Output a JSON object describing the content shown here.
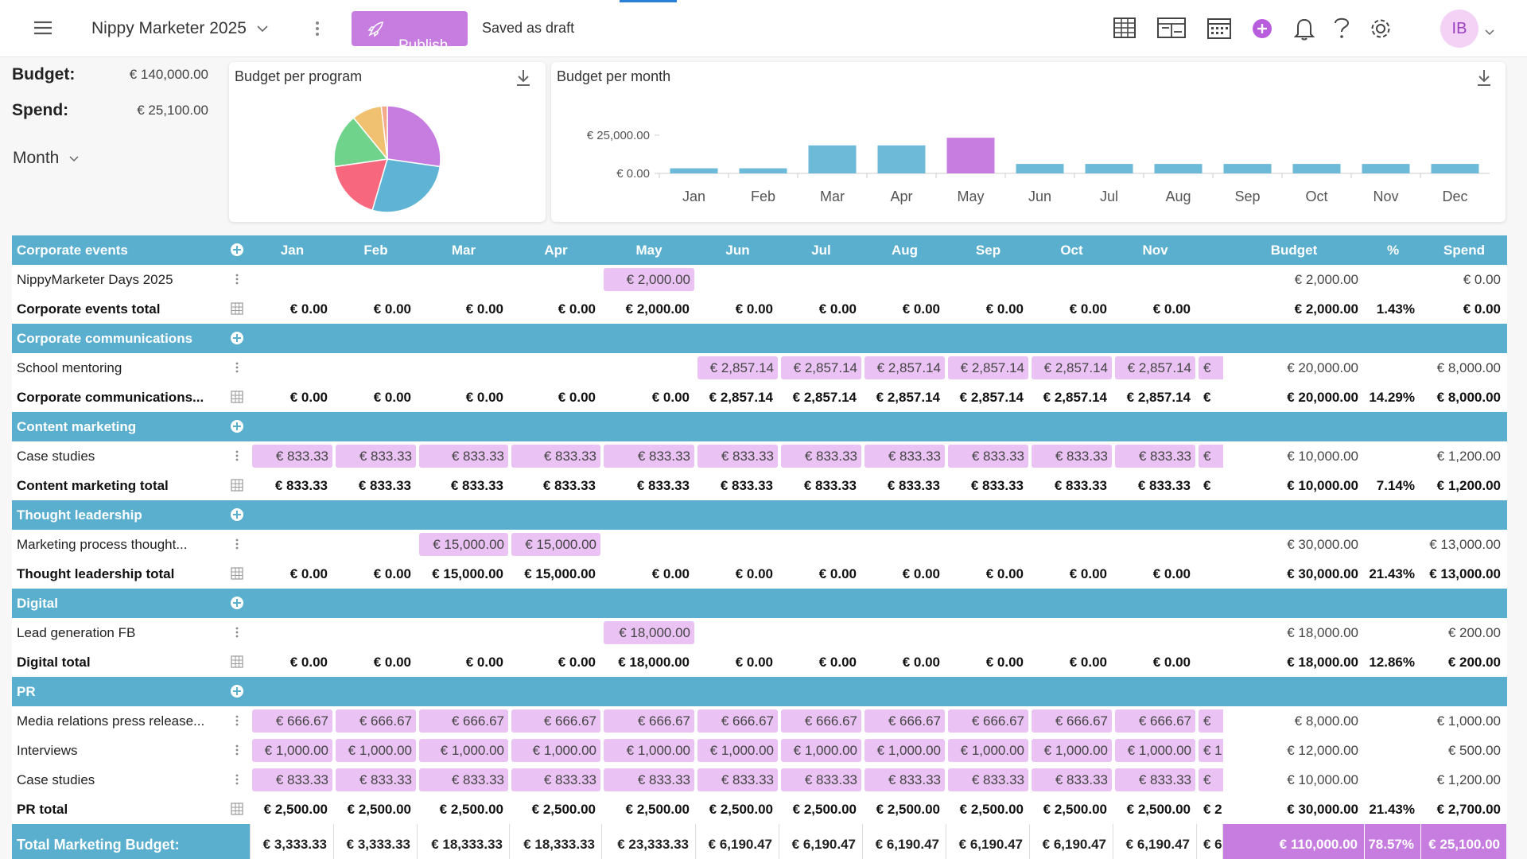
{
  "topbar": {
    "project": "Nippy Marketer 2025",
    "publish": "Publish",
    "status": "Saved as draft",
    "avatar": "IB"
  },
  "summary": {
    "budget_label": "Budget:",
    "budget": "€ 140,000.00",
    "spend_label": "Spend:",
    "spend": "€ 25,100.00",
    "period": "Month"
  },
  "chart_data": [
    {
      "type": "pie",
      "title": "Budget per program",
      "values": [
        30000,
        30000,
        20000,
        18000,
        10000,
        2000
      ],
      "colors": [
        "#c77ce0",
        "#5fb4d6",
        "#f7687e",
        "#6fd38c",
        "#f1c172",
        "#f3a98a"
      ]
    },
    {
      "type": "bar",
      "title": "Budget per month",
      "categories": [
        "Jan",
        "Feb",
        "Mar",
        "Apr",
        "May",
        "Jun",
        "Jul",
        "Aug",
        "Sep",
        "Oct",
        "Nov",
        "Dec"
      ],
      "values": [
        3333.33,
        3333.33,
        18333.33,
        18333.33,
        23333.33,
        6190.47,
        6190.47,
        6190.47,
        6190.47,
        6190.47,
        6190.47,
        6190.47
      ],
      "colors": [
        "#6cbad8",
        "#6cbad8",
        "#6cbad8",
        "#6cbad8",
        "#c77ce0",
        "#6cbad8",
        "#6cbad8",
        "#6cbad8",
        "#6cbad8",
        "#6cbad8",
        "#6cbad8",
        "#6cbad8"
      ],
      "ylim": [
        0,
        25000
      ],
      "yticks": [
        {
          "value": 0,
          "label": "€ 0.00"
        },
        {
          "value": 25000,
          "label": "€ 25,000.00"
        }
      ]
    }
  ],
  "table": {
    "columns": [
      "Jan",
      "Feb",
      "Mar",
      "Apr",
      "May",
      "Jun",
      "Jul",
      "Aug",
      "Sep",
      "Oct",
      "Nov",
      null,
      "Budget",
      "%",
      "Spend"
    ],
    "groups": [
      {
        "name": "Corporate events",
        "items": [
          {
            "label": "NippyMarketer Days 2025",
            "cells": [
              null,
              null,
              null,
              null,
              "€ 2,000.00",
              null,
              null,
              null,
              null,
              null,
              null,
              null,
              "€ 2,000.00",
              null,
              "€ 0.00"
            ]
          }
        ],
        "total": {
          "label": "Corporate events total",
          "cells": [
            "€ 0.00",
            "€ 0.00",
            "€ 0.00",
            "€ 0.00",
            "€ 2,000.00",
            "€ 0.00",
            "€ 0.00",
            "€ 0.00",
            "€ 0.00",
            "€ 0.00",
            "€ 0.00",
            null,
            "€ 2,000.00",
            "1.43%",
            "€ 0.00"
          ]
        }
      },
      {
        "name": "Corporate communications",
        "items": [
          {
            "label": "School mentoring",
            "cells": [
              null,
              null,
              null,
              null,
              null,
              "€ 2,857.14",
              "€ 2,857.14",
              "€ 2,857.14",
              "€ 2,857.14",
              "€ 2,857.14",
              "€ 2,857.14",
              "€",
              "€ 20,000.00",
              null,
              "€ 8,000.00"
            ]
          }
        ],
        "total": {
          "label": "Corporate communications...",
          "cells": [
            "€ 0.00",
            "€ 0.00",
            "€ 0.00",
            "€ 0.00",
            "€ 0.00",
            "€ 2,857.14",
            "€ 2,857.14",
            "€ 2,857.14",
            "€ 2,857.14",
            "€ 2,857.14",
            "€ 2,857.14",
            "€",
            "€ 20,000.00",
            "14.29%",
            "€ 8,000.00"
          ]
        }
      },
      {
        "name": "Content marketing",
        "items": [
          {
            "label": "Case studies",
            "cells": [
              "€ 833.33",
              "€ 833.33",
              "€ 833.33",
              "€ 833.33",
              "€ 833.33",
              "€ 833.33",
              "€ 833.33",
              "€ 833.33",
              "€ 833.33",
              "€ 833.33",
              "€ 833.33",
              "€",
              "€ 10,000.00",
              null,
              "€ 1,200.00"
            ]
          }
        ],
        "total": {
          "label": "Content marketing total",
          "cells": [
            "€ 833.33",
            "€ 833.33",
            "€ 833.33",
            "€ 833.33",
            "€ 833.33",
            "€ 833.33",
            "€ 833.33",
            "€ 833.33",
            "€ 833.33",
            "€ 833.33",
            "€ 833.33",
            "€",
            "€ 10,000.00",
            "7.14%",
            "€ 1,200.00"
          ]
        }
      },
      {
        "name": "Thought leadership",
        "items": [
          {
            "label": "Marketing process thought...",
            "cells": [
              null,
              null,
              "€ 15,000.00",
              "€ 15,000.00",
              null,
              null,
              null,
              null,
              null,
              null,
              null,
              null,
              "€ 30,000.00",
              null,
              "€ 13,000.00"
            ]
          }
        ],
        "total": {
          "label": "Thought leadership total",
          "cells": [
            "€ 0.00",
            "€ 0.00",
            "€ 15,000.00",
            "€ 15,000.00",
            "€ 0.00",
            "€ 0.00",
            "€ 0.00",
            "€ 0.00",
            "€ 0.00",
            "€ 0.00",
            "€ 0.00",
            null,
            "€ 30,000.00",
            "21.43%",
            "€ 13,000.00"
          ]
        }
      },
      {
        "name": "Digital",
        "items": [
          {
            "label": "Lead generation FB",
            "cells": [
              null,
              null,
              null,
              null,
              "€ 18,000.00",
              null,
              null,
              null,
              null,
              null,
              null,
              null,
              "€ 18,000.00",
              null,
              "€ 200.00"
            ]
          }
        ],
        "total": {
          "label": "Digital total",
          "cells": [
            "€ 0.00",
            "€ 0.00",
            "€ 0.00",
            "€ 0.00",
            "€ 18,000.00",
            "€ 0.00",
            "€ 0.00",
            "€ 0.00",
            "€ 0.00",
            "€ 0.00",
            "€ 0.00",
            null,
            "€ 18,000.00",
            "12.86%",
            "€ 200.00"
          ]
        }
      },
      {
        "name": "PR",
        "items": [
          {
            "label": "Media relations press release...",
            "cells": [
              "€ 666.67",
              "€ 666.67",
              "€ 666.67",
              "€ 666.67",
              "€ 666.67",
              "€ 666.67",
              "€ 666.67",
              "€ 666.67",
              "€ 666.67",
              "€ 666.67",
              "€ 666.67",
              "€",
              "€ 8,000.00",
              null,
              "€ 1,000.00"
            ]
          },
          {
            "label": "Interviews",
            "cells": [
              "€ 1,000.00",
              "€ 1,000.00",
              "€ 1,000.00",
              "€ 1,000.00",
              "€ 1,000.00",
              "€ 1,000.00",
              "€ 1,000.00",
              "€ 1,000.00",
              "€ 1,000.00",
              "€ 1,000.00",
              "€ 1,000.00",
              "€ 1",
              "€ 12,000.00",
              null,
              "€ 500.00"
            ]
          },
          {
            "label": "Case studies",
            "cells": [
              "€ 833.33",
              "€ 833.33",
              "€ 833.33",
              "€ 833.33",
              "€ 833.33",
              "€ 833.33",
              "€ 833.33",
              "€ 833.33",
              "€ 833.33",
              "€ 833.33",
              "€ 833.33",
              "€",
              "€ 10,000.00",
              null,
              "€ 1,200.00"
            ]
          }
        ],
        "total": {
          "label": "PR total",
          "cells": [
            "€ 2,500.00",
            "€ 2,500.00",
            "€ 2,500.00",
            "€ 2,500.00",
            "€ 2,500.00",
            "€ 2,500.00",
            "€ 2,500.00",
            "€ 2,500.00",
            "€ 2,500.00",
            "€ 2,500.00",
            "€ 2,500.00",
            "€ 2",
            "€ 30,000.00",
            "21.43%",
            "€ 2,700.00"
          ]
        }
      }
    ],
    "grand_total": {
      "label": "Total Marketing Budget:",
      "cells": [
        "€ 3,333.33",
        "€ 3,333.33",
        "€ 18,333.33",
        "€ 18,333.33",
        "€ 23,333.33",
        "€ 6,190.47",
        "€ 6,190.47",
        "€ 6,190.47",
        "€ 6,190.47",
        "€ 6,190.47",
        "€ 6,190.47",
        "€ 6",
        "€ 110,000.00",
        "78.57%",
        "€ 25,100.00"
      ]
    }
  }
}
